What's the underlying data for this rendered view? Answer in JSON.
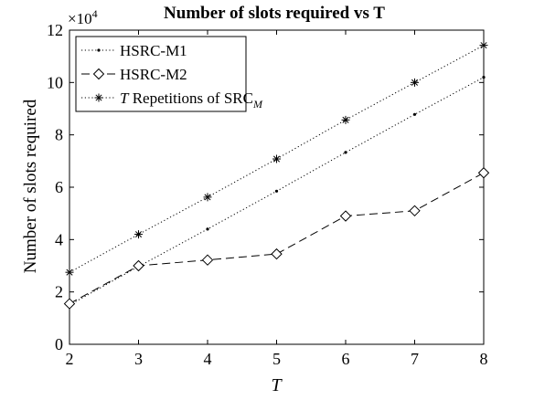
{
  "chart_data": {
    "type": "line",
    "title": "Number of slots required vs T",
    "xlabel": "T",
    "ylabel": "Number of slots required",
    "y_multiplier": "×10",
    "y_exponent": "4",
    "x": [
      2,
      3,
      4,
      5,
      6,
      7,
      8
    ],
    "xlim": [
      2,
      8
    ],
    "ylim": [
      0,
      12
    ],
    "x_ticks": [
      "2",
      "3",
      "4",
      "5",
      "6",
      "7",
      "8"
    ],
    "y_ticks": [
      "0",
      "2",
      "4",
      "6",
      "8",
      "10",
      "12"
    ],
    "grid": false,
    "legend_position": "top-left",
    "series": [
      {
        "name": "HSRC-M1",
        "marker": "dot",
        "line_style": "dotted",
        "values": [
          1.5,
          2.97,
          4.4,
          5.85,
          7.33,
          8.78,
          10.2
        ]
      },
      {
        "name": "HSRC-M2",
        "marker": "diamond",
        "line_style": "dashed",
        "values": [
          1.55,
          3.0,
          3.22,
          3.45,
          4.9,
          5.1,
          6.55
        ]
      },
      {
        "name_prefix": "T",
        "name_suffix": " Repetitions of SRC",
        "name_subscript": "M",
        "marker": "asterisk",
        "line_style": "dotted",
        "values": [
          2.75,
          4.2,
          5.62,
          7.08,
          8.57,
          10.0,
          11.42
        ]
      }
    ]
  }
}
